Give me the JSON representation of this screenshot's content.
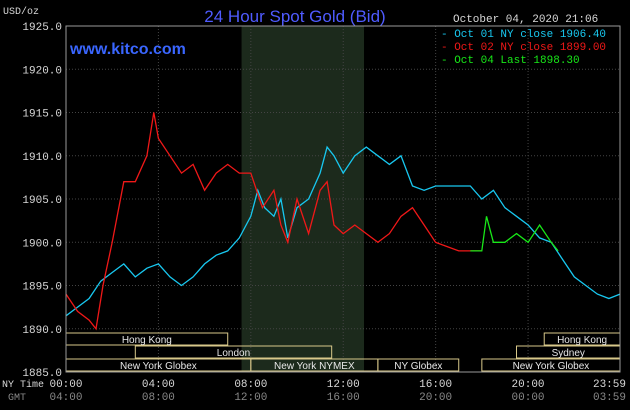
{
  "chart_data": {
    "type": "line",
    "title": "24 Hour Spot Gold (Bid)",
    "watermark": "www.kitco.com",
    "date_label": "October 04, 2020 21:06",
    "y_unit_label": "USD/oz",
    "ylim": [
      1885,
      1925
    ],
    "y_ticks": [
      "1885.0",
      "1890.0",
      "1895.0",
      "1900.0",
      "1905.0",
      "1910.0",
      "1915.0",
      "1920.0",
      "1925.0"
    ],
    "x_tick_labels_ny": [
      "00:00",
      "04:00",
      "08:00",
      "12:00",
      "16:00",
      "20:00",
      "23:59"
    ],
    "x_tick_labels_gmt": [
      "04:00",
      "08:00",
      "12:00",
      "16:00",
      "20:00",
      "00:00",
      "03:59"
    ],
    "x_row_label_ny": "NY Time",
    "x_row_label_gmt": "GMT",
    "colors": {
      "background": "#000000",
      "plot_bg": "#000000",
      "grid": "#444444",
      "frame": "#9a9a9a",
      "title": "#4f5bff",
      "watermark": "#3a66ff",
      "text": "#d8d8d8",
      "session_box": "#d8c88a",
      "shade": "#1c2a1c"
    },
    "shaded_region_hours": [
      7.6,
      12.9
    ],
    "series": [
      {
        "name": "Oct 01 NY close 1906.40",
        "legend_prefix": "-",
        "color": "#18c8f0",
        "x": [
          0,
          0.5,
          1,
          1.5,
          2,
          2.5,
          3,
          3.5,
          4,
          4.5,
          5,
          5.5,
          6,
          6.5,
          7,
          7.5,
          8,
          8.3,
          8.6,
          9,
          9.3,
          9.6,
          10,
          10.5,
          11,
          11.3,
          11.6,
          12,
          12.5,
          13,
          13.5,
          14,
          14.5,
          15,
          15.5,
          16,
          16.5,
          17,
          17.5,
          18,
          18.5,
          19,
          19.5,
          20,
          20.5,
          21,
          21.5,
          22,
          22.5,
          23,
          23.5,
          23.98
        ],
        "y": [
          1891.5,
          1892.5,
          1893.5,
          1895.5,
          1896.5,
          1897.5,
          1896,
          1897,
          1897.5,
          1896,
          1895,
          1896,
          1897.5,
          1898.5,
          1899,
          1900.5,
          1903,
          1906,
          1904,
          1903,
          1905,
          1900.5,
          1904,
          1905,
          1908,
          1911,
          1910,
          1908,
          1910,
          1911,
          1910,
          1909,
          1910,
          1906.5,
          1906,
          1906.5,
          1906.5,
          1906.5,
          1906.5,
          1905,
          1906,
          1904,
          1903,
          1902,
          1900.5,
          1900,
          1898,
          1896,
          1895,
          1894,
          1893.5,
          1894
        ]
      },
      {
        "name": "Oct 02 NY close 1899.00",
        "legend_prefix": "-",
        "color": "#f01818",
        "x": [
          0,
          0.5,
          1,
          1.3,
          1.6,
          2,
          2.5,
          3,
          3.5,
          3.8,
          4,
          4.5,
          5,
          5.5,
          6,
          6.5,
          7,
          7.5,
          8,
          8.5,
          9,
          9.3,
          9.6,
          10,
          10.5,
          11,
          11.3,
          11.6,
          12,
          12.5,
          13,
          13.5,
          14,
          14.5,
          15,
          15.5,
          16,
          16.5,
          17,
          17.5,
          18
        ],
        "y": [
          1894,
          1892,
          1891,
          1890,
          1895,
          1900,
          1907,
          1907,
          1910,
          1915,
          1912,
          1910,
          1908,
          1909,
          1906,
          1908,
          1909,
          1908,
          1908,
          1904,
          1906,
          1902,
          1900,
          1905,
          1901,
          1906,
          1907,
          1902,
          1901,
          1902,
          1901,
          1900,
          1901,
          1903,
          1904,
          1902,
          1900,
          1899.5,
          1899,
          1899,
          1899
        ]
      },
      {
        "name": "Oct 04 Last 1898.30",
        "legend_prefix": "-",
        "color": "#18e818",
        "x": [
          17.5,
          18,
          18.2,
          18.5,
          19,
          19.5,
          20,
          20.5,
          21,
          21.3
        ],
        "y": [
          1899,
          1899,
          1903,
          1900,
          1900,
          1901,
          1900,
          1902,
          1900,
          1899
        ]
      }
    ],
    "session_rows": [
      {
        "row": 0,
        "label": "Hong Kong",
        "start": 0,
        "end": 7
      },
      {
        "row": 0,
        "label": "Hong Kong",
        "start": 20.7,
        "end": 23.98
      },
      {
        "row": 1,
        "label": "London",
        "start": 3,
        "end": 11.5
      },
      {
        "row": 1,
        "label": "Sydney",
        "start": 19.5,
        "end": 23.98
      },
      {
        "row": 2,
        "label": "New York Globex",
        "start": 0,
        "end": 8
      },
      {
        "row": 2,
        "label": "New York NYMEX",
        "start": 8,
        "end": 13.5
      },
      {
        "row": 2,
        "label": "NY Globex",
        "start": 13.5,
        "end": 17
      },
      {
        "row": 2,
        "label": "New York Globex",
        "start": 18,
        "end": 23.98
      }
    ]
  }
}
